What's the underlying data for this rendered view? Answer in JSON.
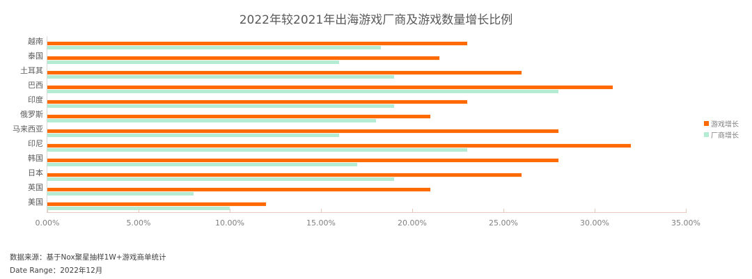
{
  "chart_data": {
    "type": "bar",
    "orientation": "horizontal",
    "title": "2022年较2021年出海游戏厂商及游戏数量增长比例",
    "categories": [
      "越南",
      "泰国",
      "土耳其",
      "巴西",
      "印度",
      "俄罗斯",
      "马来西亚",
      "印尼",
      "韩国",
      "日本",
      "英国",
      "美国"
    ],
    "series": [
      {
        "name": "游戏增长",
        "color": "#FF6A00",
        "values": [
          23,
          21.5,
          26,
          31,
          23,
          21,
          28,
          32,
          28,
          26,
          21,
          12
        ]
      },
      {
        "name": "厂商增长",
        "color": "#B3EBD3",
        "values": [
          18.3,
          16,
          19,
          28,
          19,
          18,
          16,
          23,
          17,
          19,
          8,
          10
        ]
      }
    ],
    "xlabel": "",
    "ylabel": "",
    "xlim": [
      0,
      35
    ],
    "x_ticks": [
      "0.00%",
      "5.00%",
      "10.00%",
      "15.00%",
      "20.00%",
      "25.00%",
      "30.00%",
      "35.00%"
    ],
    "value_unit": "%",
    "grid": false,
    "legend_position": "right"
  },
  "footer": {
    "source": "数据来源：基于Nox聚星抽样1W+游戏商单统计",
    "date_range": "Date Range：2022年12月"
  }
}
